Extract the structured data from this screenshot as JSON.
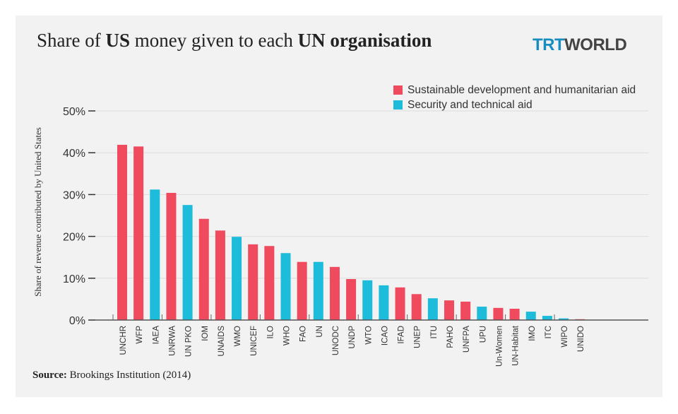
{
  "title": {
    "pre": "Share of ",
    "b1": "US",
    "mid": " money given to each ",
    "b2": "UN organisation"
  },
  "logo": {
    "part1": "TRT",
    "part2": "WORLD"
  },
  "source": {
    "label": "Source:",
    "text": " Brookings Institution (2014)"
  },
  "colors": {
    "humanitarian": "#f04a5e",
    "security": "#1cbcda"
  },
  "chart_data": {
    "type": "bar",
    "title": "Share of US money given to each UN organisation",
    "xlabel": "",
    "ylabel": "Share of revenue contributed by United States",
    "ylim": [
      0,
      50
    ],
    "yticks": [
      "0%",
      "10%",
      "20%",
      "30%",
      "40%",
      "50%"
    ],
    "grid": true,
    "legend_position": "top-right",
    "legend": [
      {
        "name": "Sustainable development and humanitarian aid",
        "key": "humanitarian"
      },
      {
        "name": "Security and technical aid",
        "key": "security"
      }
    ],
    "categories": [
      "UNCHR",
      "WFP",
      "IAEA",
      "UNRWA",
      "UN PKO",
      "IOM",
      "UNAIDS",
      "WMO",
      "UNICEF",
      "ILO",
      "WHO",
      "FAO",
      "UN",
      "UNODC",
      "UNDP",
      "WTO",
      "ICAO",
      "IFAD",
      "UNEP",
      "ITU",
      "PAHO",
      "UNFPA",
      "UPU",
      "Un-Women",
      "UN-Habitat",
      "IMO",
      "ITC",
      "WIPO",
      "UNIDO"
    ],
    "values": [
      41.9,
      41.5,
      31.2,
      30.4,
      27.5,
      24.2,
      21.4,
      19.9,
      18.1,
      17.7,
      16.0,
      13.9,
      13.9,
      12.7,
      9.8,
      9.5,
      8.3,
      7.8,
      6.2,
      5.2,
      4.7,
      4.4,
      3.2,
      2.9,
      2.7,
      2.0,
      1.0,
      0.4,
      0.2
    ],
    "group": [
      "humanitarian",
      "humanitarian",
      "security",
      "humanitarian",
      "security",
      "humanitarian",
      "humanitarian",
      "security",
      "humanitarian",
      "humanitarian",
      "security",
      "humanitarian",
      "security",
      "humanitarian",
      "humanitarian",
      "security",
      "security",
      "humanitarian",
      "humanitarian",
      "security",
      "humanitarian",
      "humanitarian",
      "security",
      "humanitarian",
      "humanitarian",
      "security",
      "security",
      "security",
      "humanitarian"
    ]
  }
}
